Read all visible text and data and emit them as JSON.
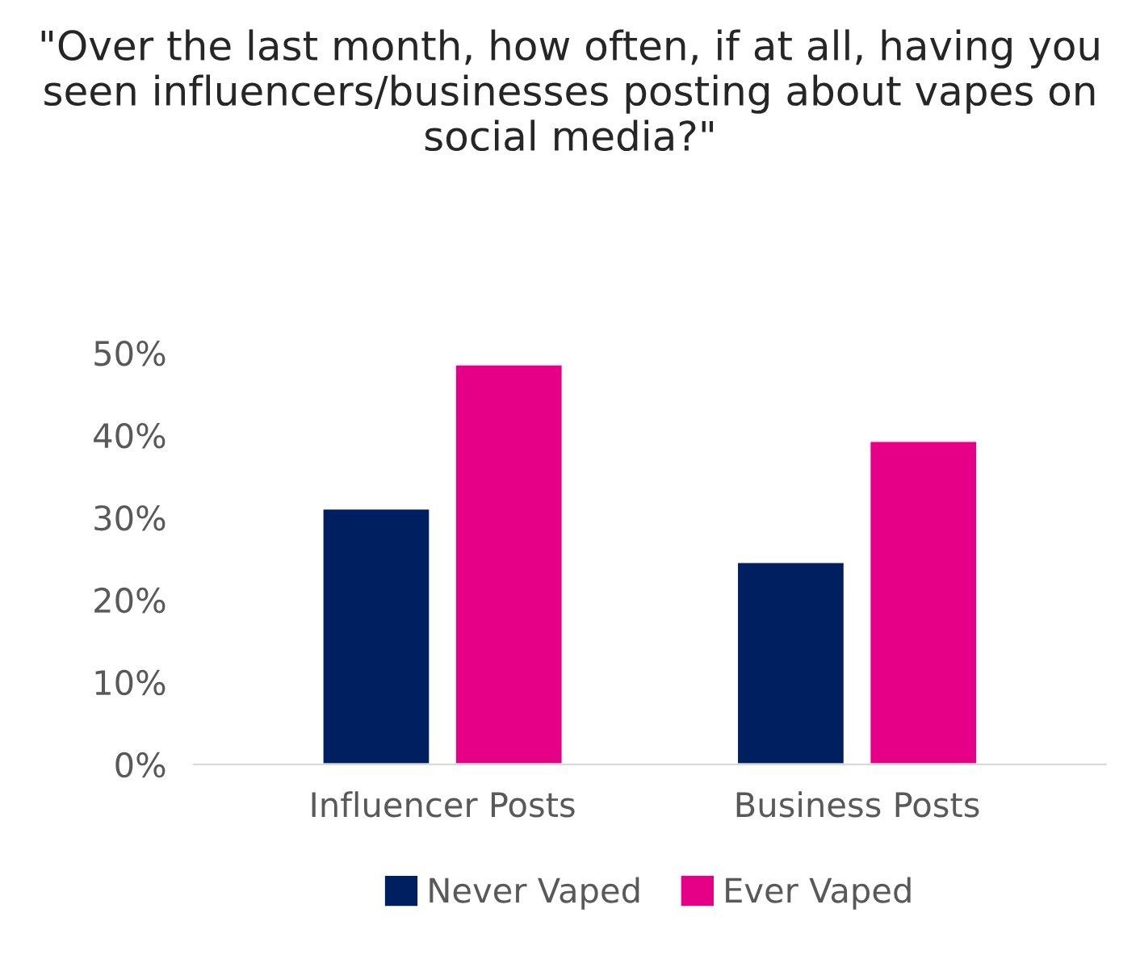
{
  "chart_data": {
    "type": "bar",
    "title": "\"Over the last month, how often, if at all, having you seen influencers/businesses posting about vapes on social media?\"",
    "categories": [
      "Influencer Posts",
      "Business Posts"
    ],
    "series": [
      {
        "name": "Never Vaped",
        "color": "#001f60",
        "values": [
          31.1,
          24.6
        ]
      },
      {
        "name": "Ever Vaped",
        "color": "#e50087",
        "values": [
          48.6,
          39.3
        ]
      }
    ],
    "ylim": [
      0,
      50
    ],
    "yticks": [
      {
        "value": 0,
        "label": "0%"
      },
      {
        "value": 10,
        "label": "10%"
      },
      {
        "value": 20,
        "label": "20%"
      },
      {
        "value": 30,
        "label": "30%"
      },
      {
        "value": 40,
        "label": "40%"
      },
      {
        "value": 50,
        "label": "50%"
      }
    ],
    "grid": false,
    "legend": "bottom"
  }
}
